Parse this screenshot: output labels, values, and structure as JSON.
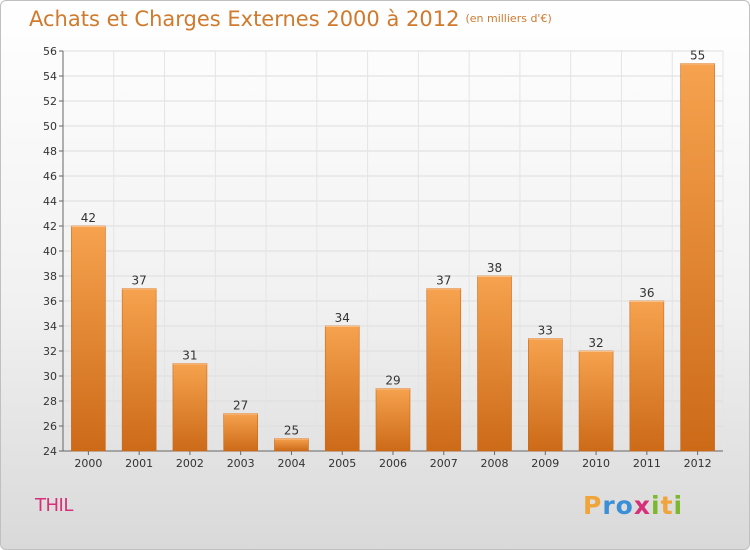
{
  "header": {
    "title": "Achats et Charges Externes 2000 à 2012",
    "unit": "(en milliers d'€)"
  },
  "footer": {
    "place": "THIL",
    "logo_letters": [
      "P",
      "r",
      "o",
      "x",
      "i",
      "t",
      "i"
    ],
    "logo_colors": [
      "#f0a53a",
      "#3a8fd6",
      "#3a8fd6",
      "#d6307a",
      "#7bb82e",
      "#f0a53a",
      "#7bb82e"
    ]
  },
  "chart_data": {
    "type": "bar",
    "categories": [
      "2000",
      "2001",
      "2002",
      "2003",
      "2004",
      "2005",
      "2006",
      "2007",
      "2008",
      "2009",
      "2010",
      "2011",
      "2012"
    ],
    "values": [
      42,
      37,
      31,
      27,
      25,
      34,
      29,
      37,
      38,
      33,
      32,
      36,
      55
    ],
    "title": "Achats et Charges Externes 2000 à 2012",
    "xlabel": "",
    "ylabel": "",
    "ylim": [
      24,
      56
    ],
    "yticks": [
      24,
      26,
      28,
      30,
      32,
      34,
      36,
      38,
      40,
      42,
      44,
      46,
      48,
      50,
      52,
      54,
      56
    ],
    "grid": true,
    "bar_color_top": "#f6a24e",
    "bar_color_bottom": "#cc6a18"
  }
}
